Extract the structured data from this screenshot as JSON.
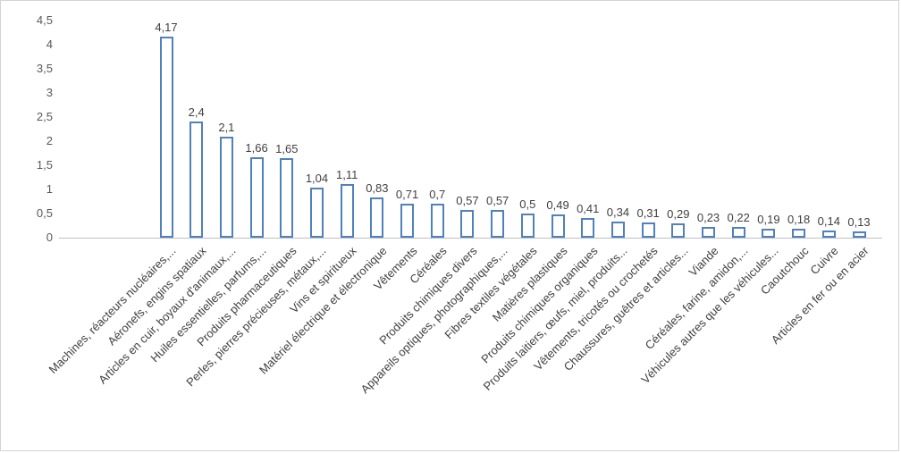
{
  "chart_data": {
    "type": "bar",
    "title": "",
    "xlabel": "",
    "ylabel": "",
    "categories": [
      "Machines, réacteurs nucléaires,...",
      "Aéronefs, engins spatiaux",
      "Articles en cuir, boyaux d'animaux,...",
      "Huiles essentielles, parfums,...",
      "Produits pharmaceutiques",
      "Perles, pierres précieuses, métaux,...",
      "Vins et spiritueux",
      "Matériel électrique et électronique",
      "Vêtements",
      "Céréales",
      "Produits chimiques divers",
      "Appareils optiques, photographiques,...",
      "Fibres textiles végétales",
      "Matières plastiques",
      "Produits chimiques organiques",
      "Produits laitiers, œufs, miel, produits...",
      "Vêtements, tricotés ou crochetés",
      "Chaussures, guêtres et articles...",
      "Viande",
      "Céréales, farine, amidon,...",
      "Véhicules autres que les véhicules...",
      "Caoutchouc",
      "Cuivre",
      "Articles en fer ou en acier"
    ],
    "values": [
      4.17,
      2.4,
      2.1,
      1.66,
      1.65,
      1.04,
      1.11,
      0.83,
      0.71,
      0.7,
      0.57,
      0.57,
      0.5,
      0.49,
      0.41,
      0.34,
      0.31,
      0.29,
      0.23,
      0.22,
      0.19,
      0.18,
      0.14,
      0.13
    ],
    "value_labels": [
      "4,17",
      "2,4",
      "2,1",
      "1,66",
      "1,65",
      "1,04",
      "1,11",
      "0,83",
      "0,71",
      "0,7",
      "0,57",
      "0,57",
      "0,5",
      "0,49",
      "0,41",
      "0,34",
      "0,31",
      "0,29",
      "0,23",
      "0,22",
      "0,19",
      "0,18",
      "0,14",
      "0,13"
    ],
    "ylim": [
      0,
      4.5
    ],
    "ytick_step": 0.5,
    "ytick_labels": [
      "0",
      "0,5",
      "1",
      "1,5",
      "2",
      "2,5",
      "3",
      "3,5",
      "4",
      "4,5"
    ],
    "grid": false,
    "legend": "none",
    "decimal_style": "comma",
    "bar_fill_color": "#ffffff",
    "bar_border_color": "#4f81bd",
    "axis_line_color": "#bfbfbf",
    "tick_label_color": "#595959",
    "data_label_color": "#404040"
  }
}
